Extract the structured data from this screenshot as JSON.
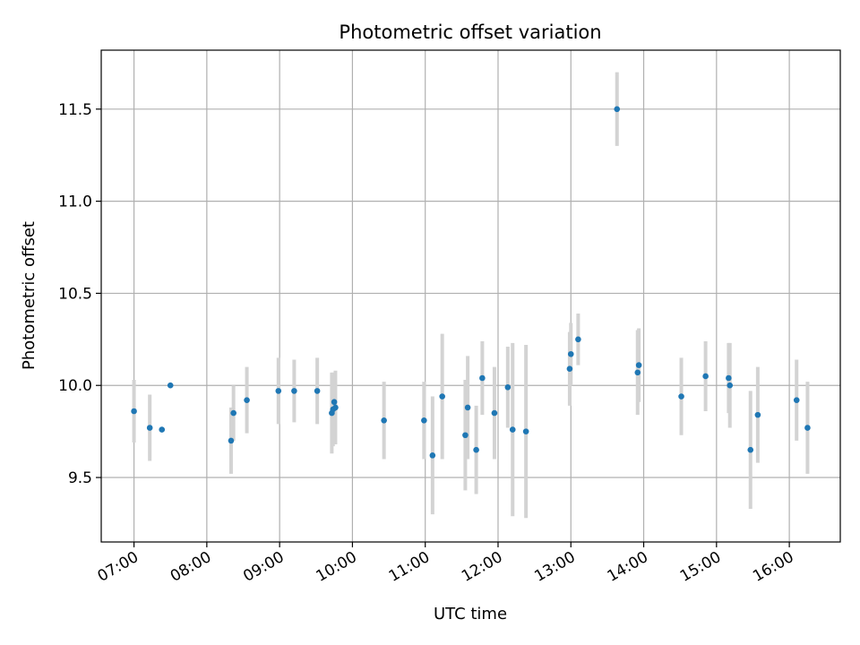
{
  "chart_data": {
    "type": "scatter",
    "title": "Photometric offset variation",
    "xlabel": "UTC time",
    "ylabel": "Photometric offset",
    "x_axis": {
      "kind": "time",
      "range": [
        "06:33",
        "16:42"
      ],
      "ticks": [
        "07:00",
        "08:00",
        "09:00",
        "10:00",
        "11:00",
        "12:00",
        "13:00",
        "14:00",
        "15:00",
        "16:00"
      ]
    },
    "y_axis": {
      "range": [
        9.15,
        11.82
      ],
      "ticks": [
        9.5,
        10.0,
        10.5,
        11.0,
        11.5
      ],
      "tick_labels": [
        "9.5",
        "10.0",
        "10.5",
        "11.0",
        "11.5"
      ]
    },
    "grid": true,
    "colors": {
      "points": "#1f77b4",
      "error_bars": "#d3d3d3",
      "grid": "#b0b0b0"
    },
    "series": [
      {
        "points": [
          {
            "x": "07:00",
            "y": 9.86,
            "err": 0.17
          },
          {
            "x": "07:13",
            "y": 9.77,
            "err": 0.18
          },
          {
            "x": "07:23",
            "y": 9.76,
            "err": 0.0
          },
          {
            "x": "07:30",
            "y": 10.0,
            "err": 0.0
          },
          {
            "x": "08:20",
            "y": 9.7,
            "err": 0.18
          },
          {
            "x": "08:22",
            "y": 9.85,
            "err": 0.15
          },
          {
            "x": "08:33",
            "y": 9.92,
            "err": 0.18
          },
          {
            "x": "08:59",
            "y": 9.97,
            "err": 0.18
          },
          {
            "x": "09:12",
            "y": 9.97,
            "err": 0.17
          },
          {
            "x": "09:31",
            "y": 9.97,
            "err": 0.18
          },
          {
            "x": "09:43",
            "y": 9.85,
            "err": 0.22
          },
          {
            "x": "09:44",
            "y": 9.87,
            "err": 0.2
          },
          {
            "x": "09:45",
            "y": 9.91,
            "err": 0.15
          },
          {
            "x": "09:46",
            "y": 9.88,
            "err": 0.2
          },
          {
            "x": "10:26",
            "y": 9.81,
            "err": 0.21
          },
          {
            "x": "10:59",
            "y": 9.81,
            "err": 0.21
          },
          {
            "x": "11:06",
            "y": 9.62,
            "err": 0.32
          },
          {
            "x": "11:14",
            "y": 9.94,
            "err": 0.34
          },
          {
            "x": "11:33",
            "y": 9.73,
            "err": 0.3
          },
          {
            "x": "11:35",
            "y": 9.88,
            "err": 0.28
          },
          {
            "x": "11:42",
            "y": 9.65,
            "err": 0.24
          },
          {
            "x": "11:47",
            "y": 10.04,
            "err": 0.2
          },
          {
            "x": "11:57",
            "y": 9.85,
            "err": 0.25
          },
          {
            "x": "12:08",
            "y": 9.99,
            "err": 0.22
          },
          {
            "x": "12:12",
            "y": 9.76,
            "err": 0.47
          },
          {
            "x": "12:23",
            "y": 9.75,
            "err": 0.47
          },
          {
            "x": "12:59",
            "y": 10.09,
            "err": 0.2
          },
          {
            "x": "13:00",
            "y": 10.17,
            "err": 0.17
          },
          {
            "x": "13:06",
            "y": 10.25,
            "err": 0.14
          },
          {
            "x": "13:38",
            "y": 11.5,
            "err": 0.2
          },
          {
            "x": "13:55",
            "y": 10.07,
            "err": 0.23
          },
          {
            "x": "13:56",
            "y": 10.11,
            "err": 0.2
          },
          {
            "x": "14:31",
            "y": 9.94,
            "err": 0.21
          },
          {
            "x": "14:51",
            "y": 10.05,
            "err": 0.19
          },
          {
            "x": "15:10",
            "y": 10.04,
            "err": 0.19
          },
          {
            "x": "15:11",
            "y": 10.0,
            "err": 0.23
          },
          {
            "x": "15:28",
            "y": 9.65,
            "err": 0.32
          },
          {
            "x": "15:34",
            "y": 9.84,
            "err": 0.26
          },
          {
            "x": "16:06",
            "y": 9.92,
            "err": 0.22
          },
          {
            "x": "16:15",
            "y": 9.77,
            "err": 0.25
          }
        ]
      }
    ]
  }
}
